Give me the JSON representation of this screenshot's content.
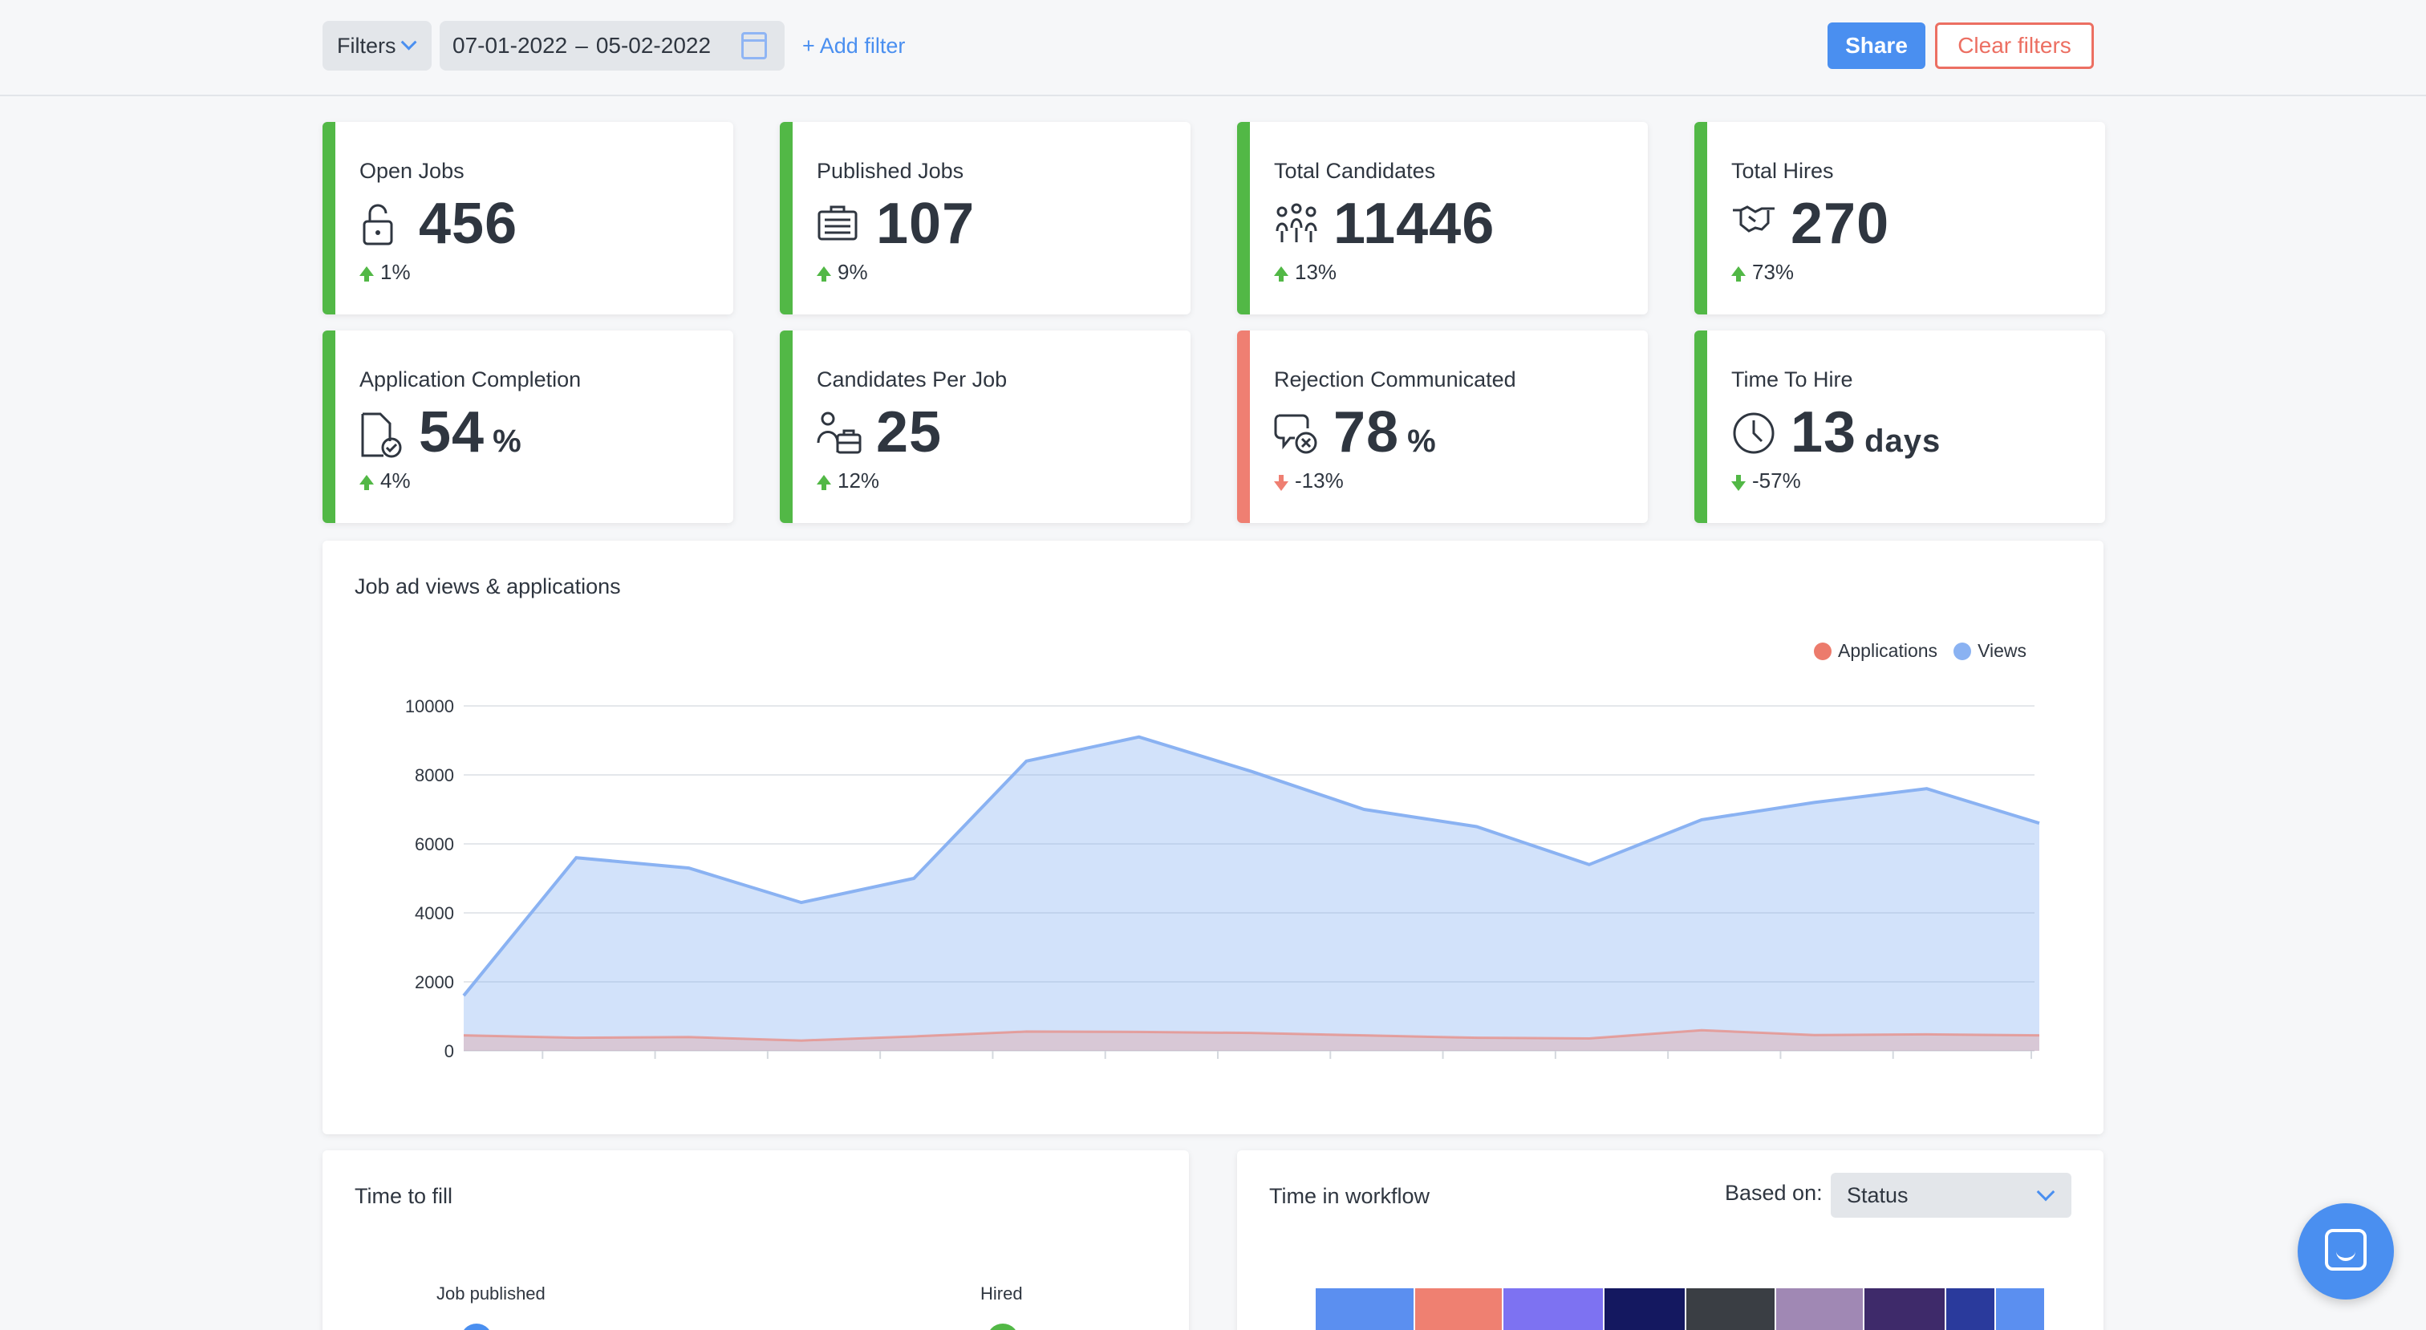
{
  "toolbar": {
    "filters_label": "Filters",
    "date_start": "07-01-2022",
    "date_end": "05-02-2022",
    "add_filter_label": "+ Add filter",
    "share_label": "Share",
    "clear_filters_label": "Clear filters"
  },
  "kpis": [
    {
      "title": "Open Jobs",
      "value": "456",
      "unit": "",
      "delta": "1%",
      "trend": "up",
      "icon": "lock-icon"
    },
    {
      "title": "Published Jobs",
      "value": "107",
      "unit": "",
      "delta": "9%",
      "trend": "up",
      "icon": "briefcase-icon"
    },
    {
      "title": "Total Candidates",
      "value": "11446",
      "unit": "",
      "delta": "13%",
      "trend": "up",
      "icon": "people-icon"
    },
    {
      "title": "Total Hires",
      "value": "270",
      "unit": "",
      "delta": "73%",
      "trend": "up",
      "icon": "handshake-icon"
    },
    {
      "title": "Application Completion",
      "value": "54",
      "unit": "%",
      "delta": "4%",
      "trend": "up",
      "icon": "document-check-icon"
    },
    {
      "title": "Candidates Per Job",
      "value": "25",
      "unit": "",
      "delta": "12%",
      "trend": "up",
      "icon": "person-briefcase-icon"
    },
    {
      "title": "Rejection Communicated",
      "value": "78",
      "unit": "%",
      "delta": "-13%",
      "trend": "down-red",
      "icon": "message-x-icon"
    },
    {
      "title": "Time To Hire",
      "value": "13",
      "unit": "days",
      "delta": "-57%",
      "trend": "down",
      "icon": "clock-icon"
    }
  ],
  "colors": {
    "positive": "#52b846",
    "negative": "#ef7f72",
    "views": "#8ab2f2",
    "applications": "#ec7b6c",
    "accent": "#4a8ff0"
  },
  "chart_panel": {
    "title": "Job ad views & applications"
  },
  "chart_data": {
    "type": "area",
    "title": "Job ad views & applications",
    "xlabel": "",
    "ylabel": "",
    "ylim": [
      0,
      10000
    ],
    "yticks": [
      0,
      2000,
      4000,
      6000,
      8000,
      10000
    ],
    "legend_position": "top-right",
    "grid": true,
    "series": [
      {
        "name": "Applications",
        "color": "#ec7b6c",
        "values": [
          450,
          380,
          400,
          300,
          420,
          560,
          550,
          520,
          450,
          380,
          360,
          600,
          460,
          480,
          450
        ]
      },
      {
        "name": "Views",
        "color": "#8ab2f2",
        "values": [
          1600,
          5600,
          5300,
          4300,
          5000,
          8400,
          9100,
          8100,
          7000,
          6500,
          5400,
          6700,
          7200,
          7600,
          6600
        ]
      }
    ]
  },
  "time_to_fill": {
    "title": "Time to fill",
    "start_label": "Job published",
    "end_label": "Hired"
  },
  "time_in_workflow": {
    "title": "Time in workflow",
    "based_on_label": "Based on:",
    "based_on_value": "Status",
    "bar_colors": [
      "#5b8ff0",
      "#ef8071",
      "#7d72f2",
      "#141860",
      "#3a3e44",
      "#a088b4",
      "#3e2a6a",
      "#2a3a9c",
      "#5b8ff0"
    ],
    "bar_widths": [
      124,
      110,
      126,
      102,
      112,
      110,
      102,
      62,
      62
    ]
  },
  "chat": {
    "icon": "chat-icon"
  }
}
